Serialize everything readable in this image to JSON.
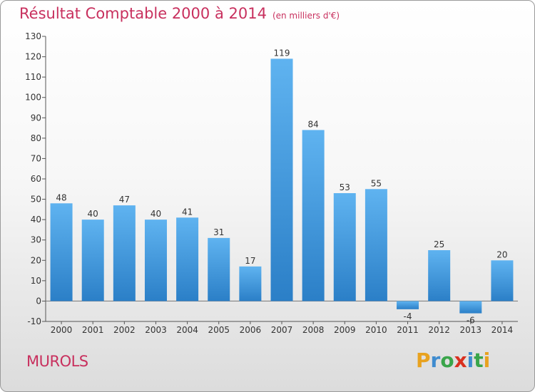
{
  "title": "Résultat Comptable 2000 à 2014",
  "unit": "(en milliers d'€)",
  "city": "MUROLS",
  "logo": {
    "letters": [
      "P",
      "r",
      "o",
      "x",
      "i",
      "t",
      "i"
    ],
    "colors": [
      "#e8a21f",
      "#3f8ccf",
      "#3aa54a",
      "#d9301f",
      "#3f8ccf",
      "#3aa54a",
      "#e8a21f"
    ]
  },
  "chart_data": {
    "type": "bar",
    "title": "Résultat Comptable 2000 à 2014",
    "xlabel": "",
    "ylabel": "",
    "categories": [
      "2000",
      "2001",
      "2002",
      "2003",
      "2004",
      "2005",
      "2006",
      "2007",
      "2008",
      "2009",
      "2010",
      "2011",
      "2012",
      "2013",
      "2014"
    ],
    "values": [
      48,
      40,
      47,
      40,
      41,
      31,
      17,
      119,
      84,
      53,
      55,
      -4,
      25,
      -6,
      20
    ],
    "ylim": [
      -10,
      130
    ],
    "yticks": [
      -10,
      0,
      10,
      20,
      30,
      40,
      50,
      60,
      70,
      80,
      90,
      100,
      110,
      120,
      130
    ],
    "grid": false,
    "bar_color": "#4ea3e6"
  }
}
